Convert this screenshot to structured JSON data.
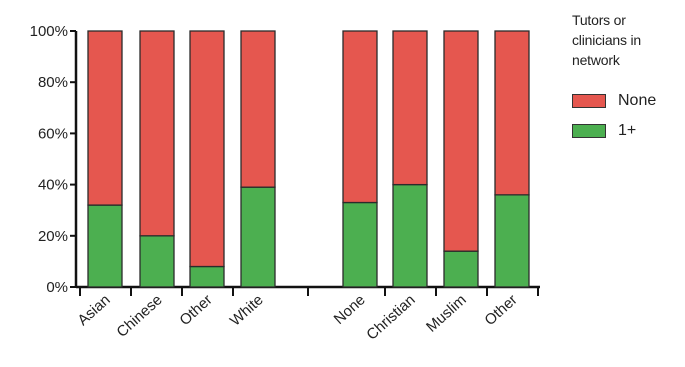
{
  "chart_data": {
    "type": "bar",
    "stacked": true,
    "normalized_percent": true,
    "categories": [
      "Asian",
      "Chinese",
      "Other",
      "White",
      "None",
      "Christian",
      "Muslim",
      "Other"
    ],
    "series": [
      {
        "name": "1+",
        "color": "#4caf50",
        "values": [
          32,
          20,
          8,
          39,
          33,
          40,
          14,
          36
        ]
      },
      {
        "name": "None",
        "color": "#e5574f",
        "values": [
          68,
          80,
          92,
          61,
          67,
          60,
          86,
          64
        ]
      }
    ],
    "ylim": [
      0,
      100
    ],
    "yticks": [
      "0%",
      "20%",
      "40%",
      "60%",
      "80%",
      "100%"
    ],
    "groups": [
      [
        "Asian",
        "Chinese",
        "Other",
        "White"
      ],
      [
        "None",
        "Christian",
        "Muslim",
        "Other"
      ]
    ],
    "grid": false,
    "legend_position": "right"
  },
  "legend": {
    "title_lines": [
      "Tutors or",
      "clinicians in",
      "network"
    ],
    "items": [
      {
        "label": "None",
        "color": "#e5574f"
      },
      {
        "label": "1+",
        "color": "#4caf50"
      }
    ]
  }
}
